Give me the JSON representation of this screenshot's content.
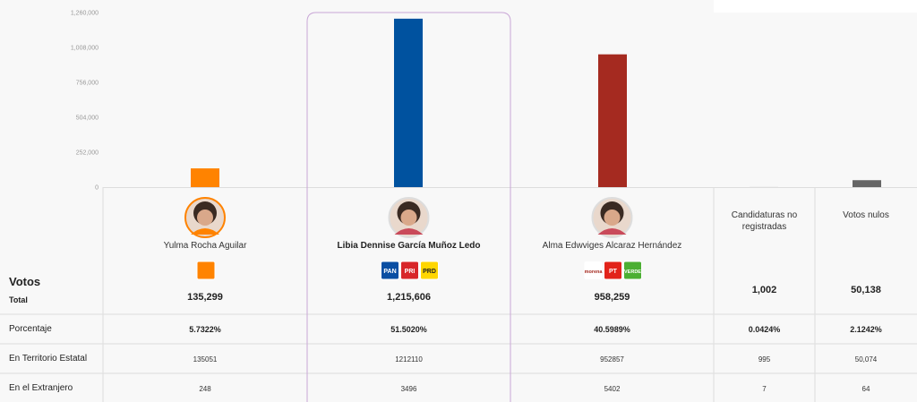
{
  "chart_data": {
    "type": "bar",
    "values": [
      135299,
      1215606,
      958259,
      1002,
      50138
    ],
    "colors": [
      "#ff8300",
      "#00529f",
      "#a52a20",
      "#c8c8c8",
      "#666666"
    ],
    "ylim": [
      0,
      1260000
    ],
    "yticks": [
      0,
      {
        "value": 252000,
        "label": "252,000"
      },
      {
        "value": 504000,
        "label": "504,000"
      },
      {
        "value": 756000,
        "label": "756,000"
      },
      {
        "value": 1008000,
        "label": "1,008,000"
      },
      {
        "value": 1260000,
        "label": "1,260,000"
      }
    ]
  },
  "table": {
    "row_labels": {
      "votos": "Votos",
      "total": "Total",
      "porcentaje": "Porcentaje",
      "territorio": "En Territorio Estatal",
      "extranjero": "En el Extranjero"
    },
    "columns": [
      {
        "name": "Yulma Rocha Aguilar",
        "photo_ring": "#ff8300",
        "parties": [
          {
            "color": "#ff8300"
          }
        ],
        "total": "135,299",
        "porcentaje": "5.7322%",
        "territorio": "135051",
        "extranjero": "248"
      },
      {
        "name": "Libia Dennise García Muñoz Ledo",
        "photo_ring": "#dddddd",
        "parties": [
          {
            "label": "PAN",
            "color": "#0a4fa3"
          },
          {
            "label": "PRI",
            "color": "#d8262a"
          },
          {
            "label": "PRD",
            "color": "#ffd600"
          }
        ],
        "total": "1,215,606",
        "porcentaje": "51.5020%",
        "territorio": "1212110",
        "extranjero": "3496"
      },
      {
        "name": "Alma Edwviges Alcaraz Hernández",
        "photo_ring": "#dddddd",
        "parties": [
          {
            "label": "morena",
            "color": "#a52a20"
          },
          {
            "label": "PT",
            "color": "#e2231a"
          },
          {
            "label": "VERDE",
            "color": "#4caf33"
          }
        ],
        "total": "958,259",
        "porcentaje": "40.5989%",
        "territorio": "952857",
        "extranjero": "5402"
      },
      {
        "name": "Candidaturas no registradas",
        "total": "1,002",
        "porcentaje": "0.0424%",
        "territorio": "995",
        "extranjero": "7"
      },
      {
        "name": "Votos nulos",
        "total": "50,138",
        "porcentaje": "2.1242%",
        "territorio": "50,074",
        "extranjero": "64"
      }
    ]
  }
}
